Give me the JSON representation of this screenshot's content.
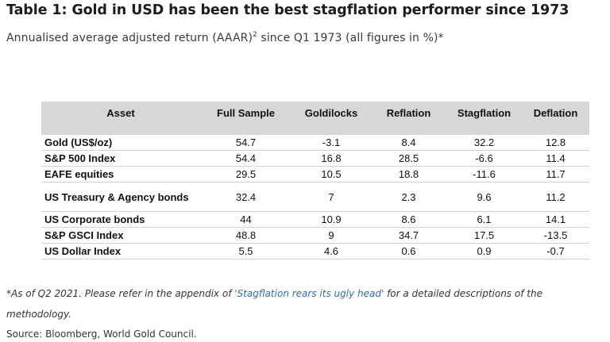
{
  "title": "Table 1: Gold in USD has been the best stagflation performer since 1973",
  "subtitle": {
    "pre": "Annualised average adjusted return (AAAR)",
    "sup": "2",
    "post": " since Q1 1973 (all figures in %)*"
  },
  "chart_data": {
    "type": "table",
    "columns": [
      "Asset",
      "Full Sample",
      "Goldilocks",
      "Reflation",
      "Stagflation",
      "Deflation"
    ],
    "rows": [
      [
        "Gold (US$/oz)",
        "54.7",
        "-3.1",
        "8.4",
        "32.2",
        "12.8"
      ],
      [
        "S&P 500 Index",
        "54.4",
        "16.8",
        "28.5",
        "-6.6",
        "11.4"
      ],
      [
        "EAFE equities",
        "29.5",
        "10.5",
        "18.8",
        "-11.6",
        "11.7"
      ],
      [
        "US Treasury & Agency bonds",
        "32.4",
        "7",
        "2.3",
        "9.6",
        "11.2"
      ],
      [
        "US Corporate bonds",
        "44",
        "10.9",
        "8.6",
        "6.1",
        "14.1"
      ],
      [
        "S&P GSCI Index",
        "48.8",
        "9",
        "34.7",
        "17.5",
        "-13.5"
      ],
      [
        "US Dollar Index",
        "5.5",
        "4.6",
        "0.6",
        "0.9",
        "-0.7"
      ]
    ]
  },
  "footnote": {
    "pre": "*As of Q2 2021. Please refer in the appendix of ",
    "link": "'Stagflation rears its ugly head'",
    "post": " for a detailed descriptions of the methodology."
  },
  "source": "Source: Bloomberg, World Gold Council.",
  "colors": {
    "header_bg": "#d7d7d7",
    "link": "#2f6fa0"
  }
}
